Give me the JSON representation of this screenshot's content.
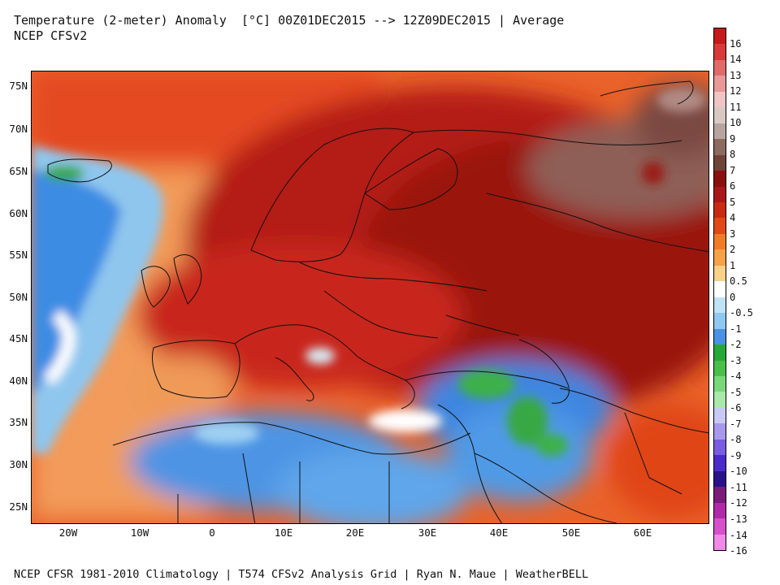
{
  "title": "Temperature (2-meter) Anomaly  [°C] 00Z01DEC2015 --> 12Z09DEC2015 | Average",
  "subtitle": "NCEP CFSv2",
  "footer": "NCEP CFSR 1981-2010 Climatology | T574 CFSv2 Analysis Grid | Ryan N. Maue | WeatherBELL",
  "map": {
    "lat_ticks": [
      "75N",
      "70N",
      "65N",
      "60N",
      "55N",
      "50N",
      "45N",
      "40N",
      "35N",
      "30N",
      "25N"
    ],
    "lon_ticks": [
      "20W",
      "10W",
      "0",
      "10E",
      "20E",
      "30E",
      "40E",
      "50E",
      "60E"
    ],
    "lat_range": [
      23,
      77.5
    ],
    "lon_range": [
      -25,
      70
    ]
  },
  "colorbar": {
    "labels": [
      "16",
      "14",
      "13",
      "12",
      "11",
      "10",
      "9",
      "8",
      "7",
      "6",
      "5",
      "4",
      "3",
      "2",
      "1",
      "0.5",
      "0",
      "-0.5",
      "-1",
      "-2",
      "-3",
      "-4",
      "-5",
      "-6",
      "-7",
      "-8",
      "-9",
      "-10",
      "-11",
      "-12",
      "-13",
      "-14",
      "-16"
    ],
    "colors": [
      "#c41a1a",
      "#d83a3a",
      "#e06a6a",
      "#e89898",
      "#eec4c4",
      "#d8c8c4",
      "#b8a49e",
      "#8c6a60",
      "#6e4438",
      "#8a1010",
      "#a81818",
      "#c82a14",
      "#e04818",
      "#f07a28",
      "#f6a048",
      "#f8d088",
      "#ffffff",
      "#bfe2f6",
      "#8ec8f0",
      "#4a90e4",
      "#26a838",
      "#48c04a",
      "#78d878",
      "#a8e8a8",
      "#c8c8f4",
      "#a898ec",
      "#7a5ce0",
      "#4a2ac8",
      "#28128a",
      "#7a1a7a",
      "#b02aa8",
      "#d650cc",
      "#f08ae8"
    ]
  }
}
